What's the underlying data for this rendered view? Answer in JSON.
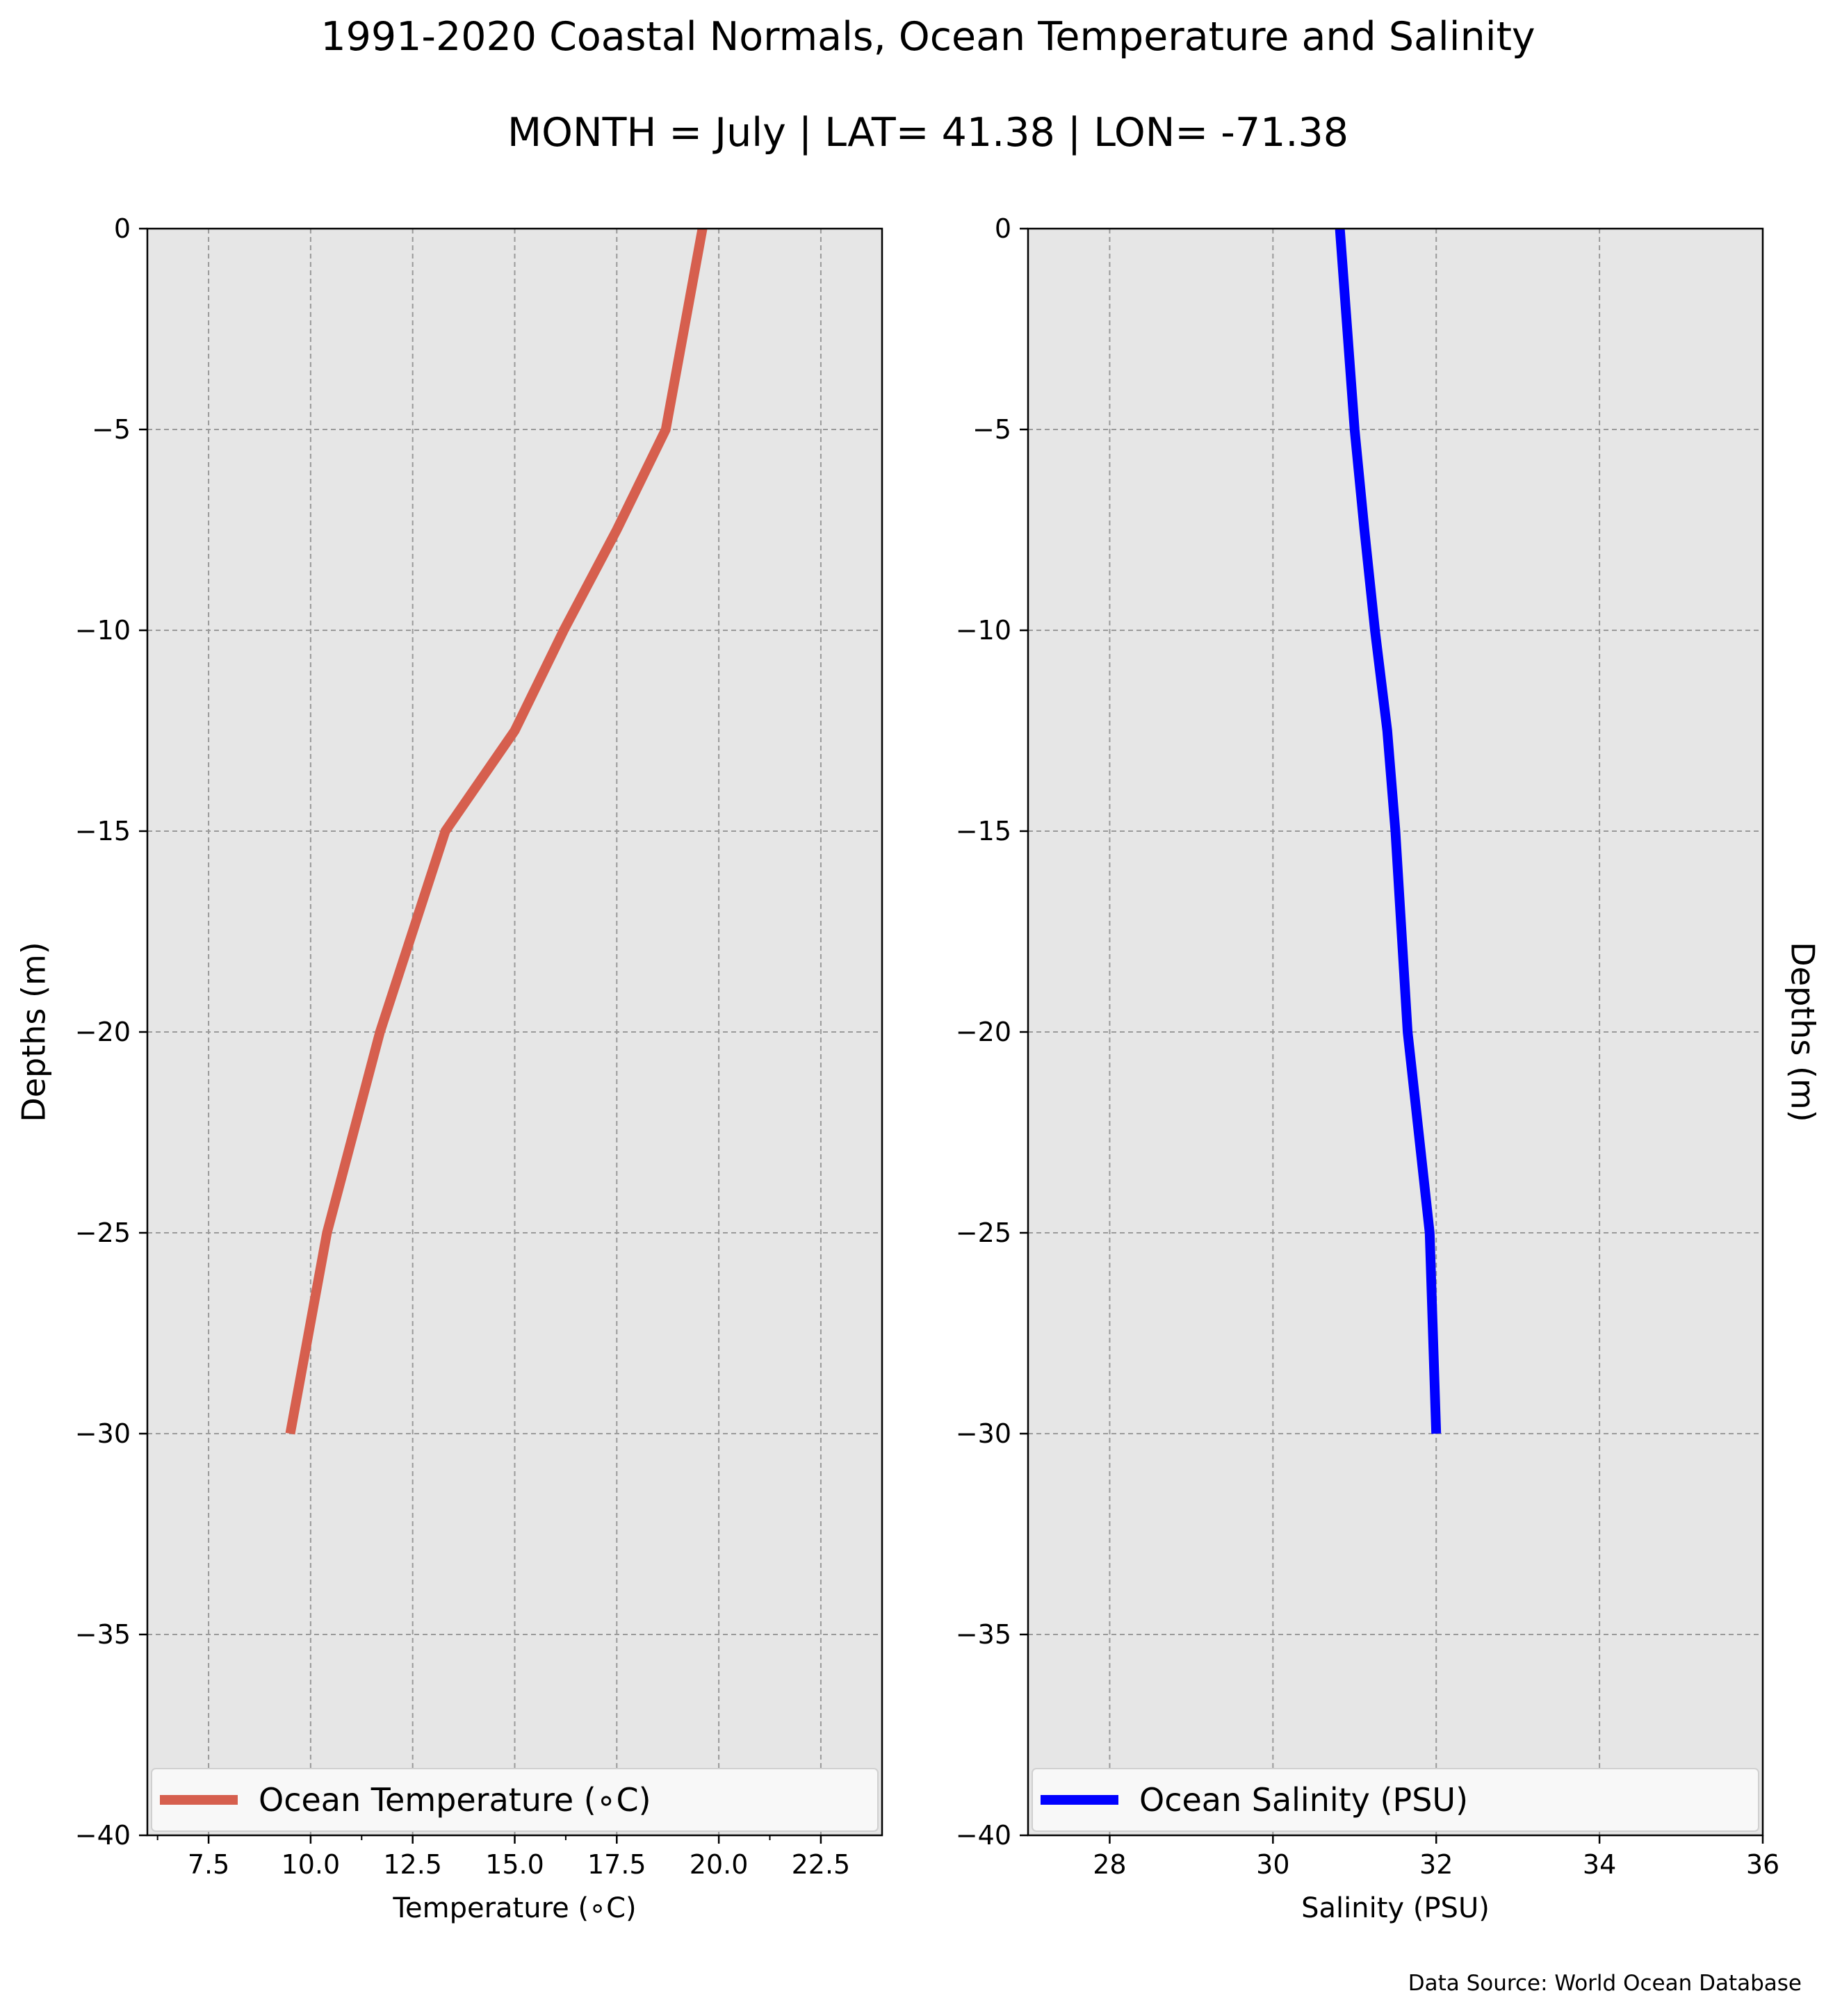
{
  "figure": {
    "title": "1991-2020 Coastal Normals, Ocean Temperature and Salinity",
    "subtitle": "MONTH = July | LAT= 41.38 | LON= -71.38",
    "source_note": "Data Source: World Ocean Database"
  },
  "colors": {
    "background": "#ffffff",
    "plot_background": "#e6e6e6",
    "grid": "#9a9a9a",
    "temperature": "#d65f4e",
    "salinity": "#0000ff"
  },
  "chart_data": [
    {
      "type": "line",
      "xlabel": "Temperature ($^\\circ$C)",
      "xlabel_display": "Temperature (∘C)",
      "ylabel": "Depths (m)",
      "ylabel_side": "left",
      "xlim": [
        6.0,
        24.0
      ],
      "ylim": [
        -40,
        0
      ],
      "x_ticks": [
        7.5,
        10.0,
        12.5,
        15.0,
        17.5,
        20.0,
        22.5
      ],
      "x_tick_labels": [
        "7.5",
        "10.0",
        "12.5",
        "15.0",
        "17.5",
        "20.0",
        "22.5"
      ],
      "x_minor_ticks": [
        6.25,
        11.25,
        16.25,
        21.25
      ],
      "y_ticks": [
        0,
        -5,
        -10,
        -15,
        -20,
        -25,
        -30,
        -35,
        -40
      ],
      "y_tick_labels": [
        "0",
        "−5",
        "−10",
        "−15",
        "−20",
        "−25",
        "−30",
        "−35",
        "−40"
      ],
      "grid": true,
      "legend_position": "bottom",
      "series": [
        {
          "name": "Ocean Temperature ($^\\circ$C)",
          "legend_label": "Ocean Temperature (∘C)",
          "color": "#d65f4e",
          "x": [
            19.6,
            18.7,
            17.5,
            16.2,
            15.0,
            13.3,
            11.7,
            10.4,
            9.5
          ],
          "y": [
            0,
            -5,
            -7.5,
            -10,
            -12.5,
            -15,
            -20,
            -25,
            -30
          ]
        }
      ]
    },
    {
      "type": "line",
      "xlabel": "Salinity (PSU)",
      "ylabel": "Depths (m)",
      "ylabel_side": "right",
      "xlim": [
        27,
        36
      ],
      "ylim": [
        -40,
        0
      ],
      "x_ticks": [
        28,
        30,
        32,
        34,
        36
      ],
      "x_tick_labels": [
        "28",
        "30",
        "32",
        "34",
        "36"
      ],
      "y_ticks": [
        0,
        -5,
        -10,
        -15,
        -20,
        -25,
        -30,
        -35,
        -40
      ],
      "y_tick_labels": [
        "0",
        "−5",
        "−10",
        "−15",
        "−20",
        "−25",
        "−30",
        "−35",
        "−40"
      ],
      "grid": true,
      "legend_position": "bottom",
      "series": [
        {
          "name": "Ocean Salinity (PSU)",
          "color": "#0000ff",
          "x": [
            30.82,
            31.0,
            31.12,
            31.25,
            31.4,
            31.5,
            31.65,
            31.92,
            32.0
          ],
          "y": [
            0,
            -5,
            -7.5,
            -10,
            -12.5,
            -15,
            -20,
            -25,
            -30
          ]
        }
      ]
    }
  ]
}
